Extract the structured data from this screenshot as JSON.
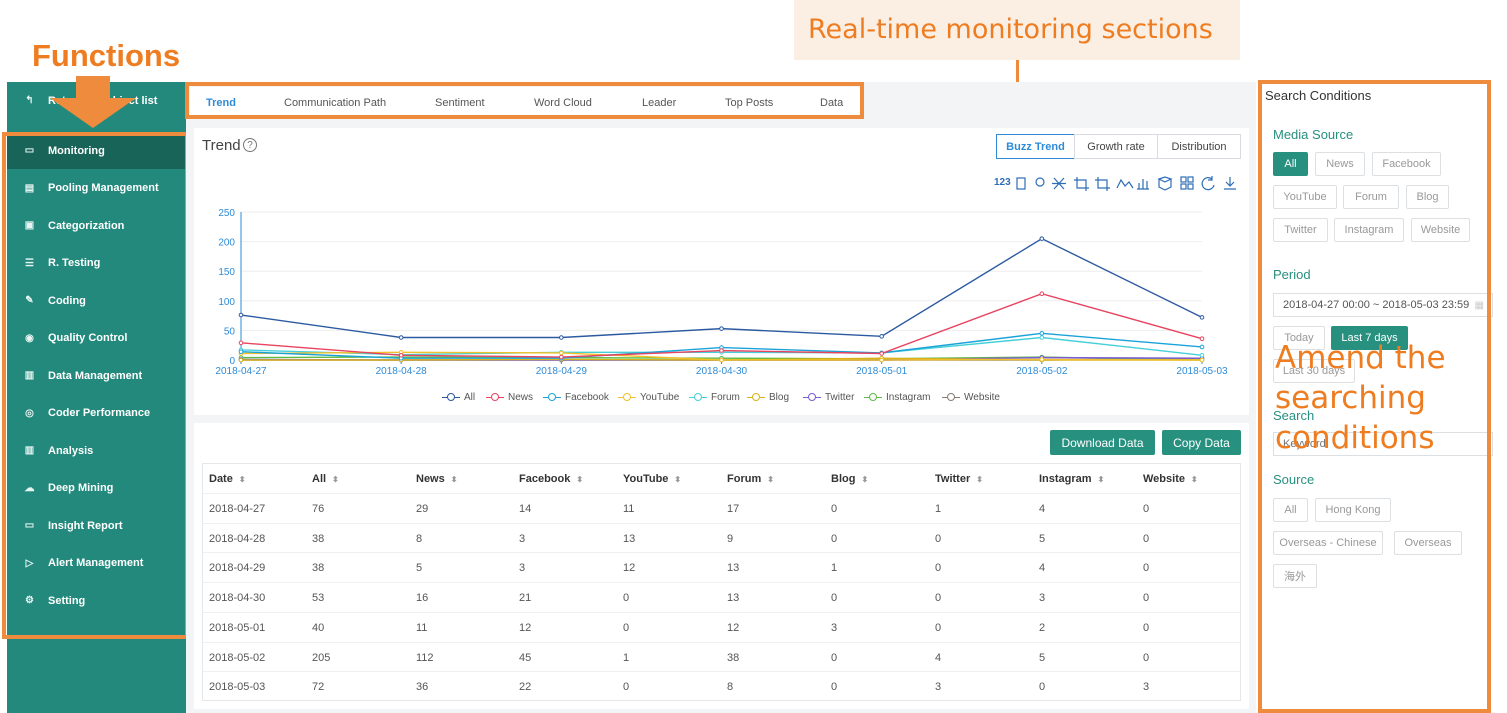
{
  "annotations": {
    "realtime": "Real-time monitoring sections",
    "functions": "Functions",
    "amend": "Amend the searching conditions"
  },
  "sidebar": {
    "return_label": "Return to subject list",
    "items": [
      {
        "label": "Monitoring",
        "icon": "monitor-icon",
        "active": true
      },
      {
        "label": "Pooling Management",
        "icon": "document-icon"
      },
      {
        "label": "Categorization",
        "icon": "book-icon"
      },
      {
        "label": "R. Testing",
        "icon": "list-icon"
      },
      {
        "label": "Coding",
        "icon": "pen-icon"
      },
      {
        "label": "Quality Control",
        "icon": "eye-icon"
      },
      {
        "label": "Data Management",
        "icon": "printer-icon"
      },
      {
        "label": "Coder Performance",
        "icon": "dollar-circle-icon"
      },
      {
        "label": "Analysis",
        "icon": "bar-chart-icon"
      },
      {
        "label": "Deep Mining",
        "icon": "cloud-icon"
      },
      {
        "label": "Insight Report",
        "icon": "laptop-icon"
      },
      {
        "label": "Alert Management",
        "icon": "send-icon"
      },
      {
        "label": "Setting",
        "icon": "gear-icon"
      }
    ]
  },
  "tabs": [
    "Trend",
    "Communication Path",
    "Sentiment",
    "Word Cloud",
    "Leader",
    "Top Posts",
    "Data"
  ],
  "trend": {
    "title": "Trend",
    "help_icon": "question-circle-icon",
    "modes": [
      "Buzz Trend",
      "Growth rate",
      "Distribution"
    ],
    "toolbar_first": "123"
  },
  "chart_data": {
    "type": "line",
    "x": [
      "2018-04-27",
      "2018-04-28",
      "2018-04-29",
      "2018-04-30",
      "2018-05-01",
      "2018-05-02",
      "2018-05-03"
    ],
    "ylim": [
      0,
      250
    ],
    "yticks": [
      0,
      50,
      100,
      150,
      200,
      250
    ],
    "grid": true,
    "legend_position": "bottom",
    "series": [
      {
        "name": "All",
        "color": "#2c5aa0",
        "values": [
          76,
          38,
          38,
          53,
          40,
          205,
          72
        ]
      },
      {
        "name": "News",
        "color": "#e8435f",
        "values": [
          29,
          8,
          5,
          16,
          11,
          112,
          36
        ]
      },
      {
        "name": "Facebook",
        "color": "#1aa3d9",
        "values": [
          14,
          3,
          3,
          21,
          12,
          45,
          22
        ]
      },
      {
        "name": "YouTube",
        "color": "#f2c028",
        "values": [
          11,
          13,
          12,
          0,
          0,
          1,
          0
        ]
      },
      {
        "name": "Forum",
        "color": "#45d0d9",
        "values": [
          17,
          9,
          13,
          13,
          12,
          38,
          8
        ]
      },
      {
        "name": "Blog",
        "color": "#d9b21a",
        "values": [
          0,
          0,
          1,
          0,
          3,
          0,
          0
        ]
      },
      {
        "name": "Twitter",
        "color": "#7a5cd6",
        "values": [
          1,
          0,
          0,
          0,
          0,
          4,
          3
        ]
      },
      {
        "name": "Instagram",
        "color": "#5dbb46",
        "values": [
          4,
          5,
          4,
          3,
          2,
          5,
          0
        ]
      },
      {
        "name": "Website",
        "color": "#8a7a72",
        "values": [
          0,
          0,
          0,
          0,
          0,
          0,
          3
        ]
      }
    ]
  },
  "actions": {
    "download": "Download Data",
    "copy": "Copy Data"
  },
  "table": {
    "headers": [
      "Date",
      "All",
      "News",
      "Facebook",
      "YouTube",
      "Forum",
      "Blog",
      "Twitter",
      "Instagram",
      "Website"
    ],
    "rows": [
      [
        "2018-04-27",
        "76",
        "29",
        "14",
        "11",
        "17",
        "0",
        "1",
        "4",
        "0"
      ],
      [
        "2018-04-28",
        "38",
        "8",
        "3",
        "13",
        "9",
        "0",
        "0",
        "5",
        "0"
      ],
      [
        "2018-04-29",
        "38",
        "5",
        "3",
        "12",
        "13",
        "1",
        "0",
        "4",
        "0"
      ],
      [
        "2018-04-30",
        "53",
        "16",
        "21",
        "0",
        "13",
        "0",
        "0",
        "3",
        "0"
      ],
      [
        "2018-05-01",
        "40",
        "11",
        "12",
        "0",
        "12",
        "3",
        "0",
        "2",
        "0"
      ],
      [
        "2018-05-02",
        "205",
        "112",
        "45",
        "1",
        "38",
        "0",
        "4",
        "5",
        "0"
      ],
      [
        "2018-05-03",
        "72",
        "36",
        "22",
        "0",
        "8",
        "0",
        "3",
        "0",
        "3"
      ]
    ]
  },
  "search": {
    "title": "Search Conditions",
    "media_label": "Media Source",
    "media": [
      "All",
      "News",
      "Facebook",
      "YouTube",
      "Forum",
      "Blog",
      "Twitter",
      "Instagram",
      "Website"
    ],
    "period_label": "Period",
    "period_value": "2018-04-27 00:00 ~ 2018-05-03 23:59",
    "period_buttons": [
      "Today",
      "Last 7 days",
      "Last 30 days"
    ],
    "search_label": "Search",
    "keyword_placeholder": "Keyword",
    "source_label": "Source",
    "sources": [
      "All",
      "Hong Kong",
      "Overseas - Chinese",
      "Overseas",
      "海外"
    ]
  }
}
